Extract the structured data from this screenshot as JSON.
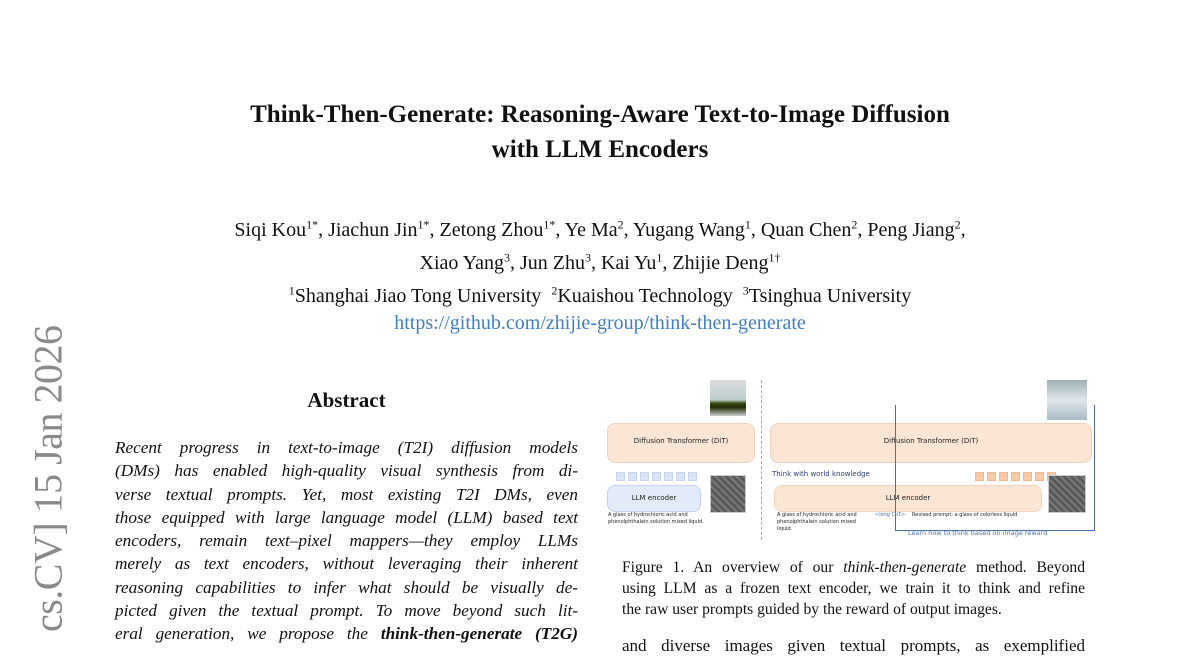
{
  "sidebar": {
    "arxiv_id": "cs.CV]  15 Jan 2026"
  },
  "header": {
    "title_line1": "Think-Then-Generate: Reasoning-Aware Text-to-Image Diffusion",
    "title_line2": "with LLM Encoders",
    "authors_line1": [
      {
        "name": "Siqi Kou",
        "sup": "1*"
      },
      {
        "name": "Jiachun Jin",
        "sup": "1*"
      },
      {
        "name": "Zetong Zhou",
        "sup": "1*"
      },
      {
        "name": "Ye Ma",
        "sup": "2"
      },
      {
        "name": "Yugang Wang",
        "sup": "1"
      },
      {
        "name": "Quan Chen",
        "sup": "2"
      },
      {
        "name": "Peng Jiang",
        "sup": "2"
      }
    ],
    "authors_line2": [
      {
        "name": "Xiao Yang",
        "sup": "3"
      },
      {
        "name": "Jun Zhu",
        "sup": "3"
      },
      {
        "name": "Kai Yu",
        "sup": "1"
      },
      {
        "name": "Zhijie Deng",
        "sup": "1†"
      }
    ],
    "affiliations": [
      {
        "sup": "1",
        "name": "Shanghai Jiao Tong University"
      },
      {
        "sup": "2",
        "name": "Kuaishou Technology"
      },
      {
        "sup": "3",
        "name": "Tsinghua University"
      }
    ],
    "link": "https://github.com/zhijie-group/think-then-generate"
  },
  "abstract": {
    "heading": "Abstract",
    "lines": [
      "Recent progress in text-to-image (T2I) diffusion models",
      "(DMs) has enabled high-quality visual synthesis from di-",
      "verse textual prompts.  Yet, most existing T2I DMs, even",
      "those equipped with large language model (LLM) based text",
      "encoders, remain text–pixel mappers—they employ LLMs",
      "merely as text encoders, without leveraging their inherent",
      "reasoning capabilities to infer what should be visually de-",
      "picted given the textual prompt. To move beyond such lit-"
    ],
    "last_line_prefix": "eral generation, we propose the ",
    "last_line_bold": "think-then-generate (T2G)"
  },
  "figure": {
    "dit_label": "Diffusion Transformer (DiT)",
    "llm_label": "LLM encoder",
    "prompt_left": "A glass of hydrochloric acid and phenolphthalein solution mixed liquid.",
    "prompt_right": "A glass of hydrochloric acid and phenolphthalein solution mixed liquid.",
    "think_label": "Think with world knowledge",
    "cot_tag": "<long CoT>",
    "revised_prompt": "Revised prompt: a glass of colorless liquid",
    "reward_label": "Learn how to think based on image reward",
    "colors": {
      "peach": "#fbe6d6",
      "blue": "#e3ebf8",
      "arrow": "#4a6fb5"
    },
    "caption_prefix": "Figure 1. An overview of our ",
    "caption_italic": "think-then-generate",
    "caption_suffix": " method. Beyond",
    "caption_lines": [
      "using LLM as a frozen text encoder, we train it to think and refine",
      "the raw user prompts guided by the reward of output images."
    ]
  },
  "body": {
    "line": "and diverse images given textual prompts, as exemplified"
  }
}
